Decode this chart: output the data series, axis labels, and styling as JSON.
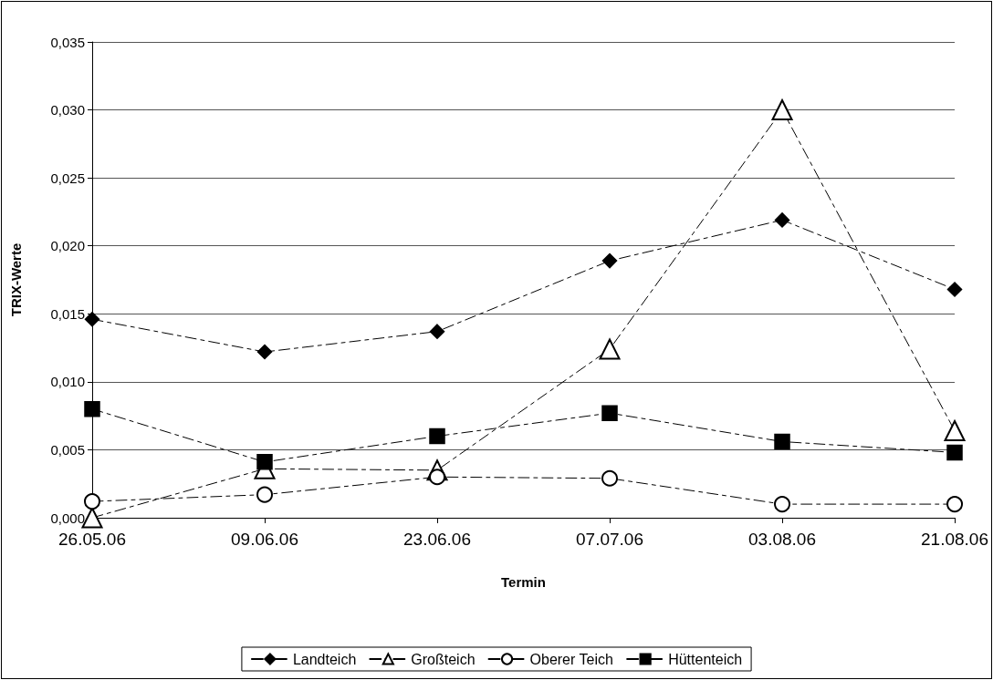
{
  "chart_data": {
    "type": "line",
    "xlabel": "Termin",
    "ylabel": "TRIX-Werte",
    "categories": [
      "26.05.06",
      "09.06.06",
      "23.06.06",
      "07.07.06",
      "03.08.06",
      "21.08.06"
    ],
    "series": [
      {
        "name": "Landteich",
        "color": "#000000",
        "marker": "diamond",
        "values": [
          0.0146,
          0.0122,
          0.0137,
          0.0189,
          0.0219,
          0.0168
        ]
      },
      {
        "name": "Großteich",
        "color": "#000000",
        "marker": "triangle",
        "values": [
          0.0,
          0.0036,
          0.0035,
          0.0124,
          0.03,
          0.0064
        ]
      },
      {
        "name": "Oberer Teich",
        "color": "#000000",
        "marker": "circle",
        "values": [
          0.0012,
          0.0017,
          0.003,
          0.0029,
          0.001,
          0.001
        ]
      },
      {
        "name": "Hüttenteich",
        "color": "#000000",
        "marker": "square",
        "values": [
          0.008,
          0.0041,
          0.006,
          0.0077,
          0.0056,
          0.0048
        ]
      }
    ],
    "ylim": [
      0,
      0.035
    ],
    "yticks": [
      {
        "value": 0,
        "label": "0,000"
      },
      {
        "value": 0.005,
        "label": "0,005"
      },
      {
        "value": 0.01,
        "label": "0,010"
      },
      {
        "value": 0.015,
        "label": "0,015"
      },
      {
        "value": 0.02,
        "label": "0,020"
      },
      {
        "value": 0.025,
        "label": "0,025"
      },
      {
        "value": 0.03,
        "label": "0,030"
      },
      {
        "value": 0.035,
        "label": "0,035"
      }
    ],
    "grid": "y",
    "legend": "bottom",
    "line_style": "dashed"
  }
}
